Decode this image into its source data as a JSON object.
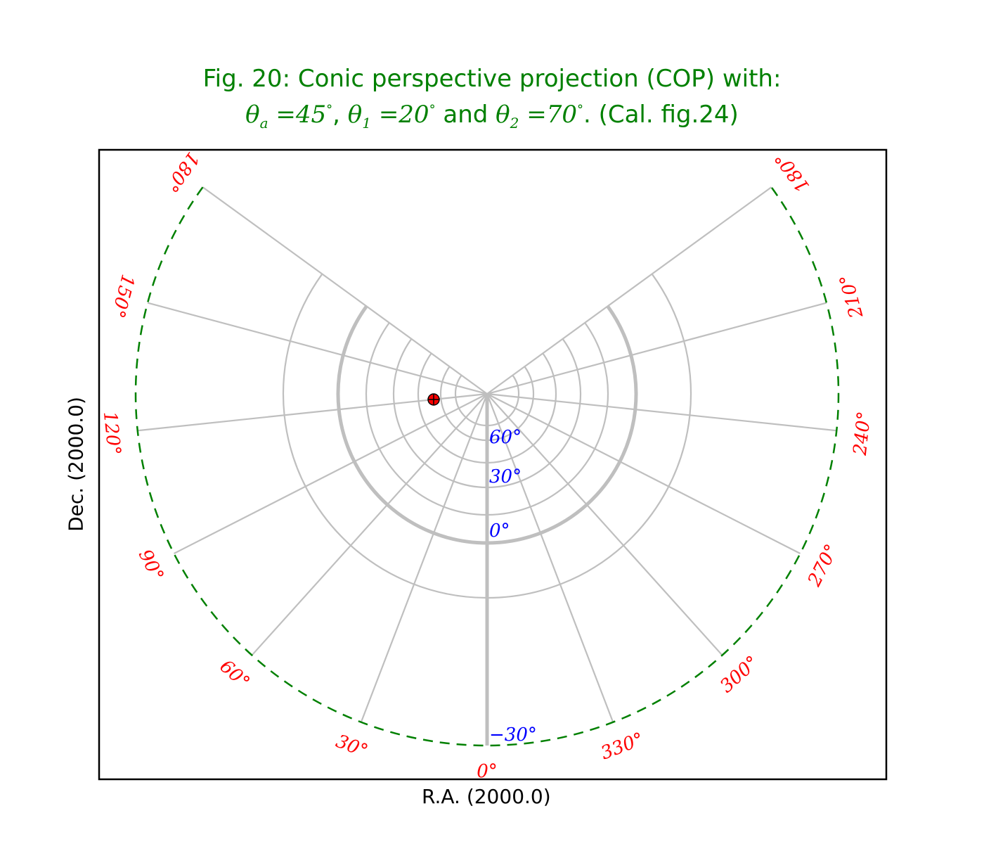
{
  "title": {
    "line1": "Fig. 20: Conic perspective projection (COP) with:",
    "theta_a_sym": "θ",
    "theta_a_sub": "a",
    "theta_a_val": "=45",
    "theta_1_sym": "θ",
    "theta_1_sub": "1",
    "theta_1_val": "=20",
    "and": "and",
    "theta_2_sym": "θ",
    "theta_2_sub": "2",
    "theta_2_val": "=70",
    "degree": "°",
    "suffix": ". (Cal. fig.24)",
    "comma": ","
  },
  "axes": {
    "xlabel": "R.A. (2000.0)",
    "ylabel": "Dec. (2000.0)"
  },
  "colors": {
    "title": "#008000",
    "grid": "#bfbfbf",
    "ra_labels": "#ff0000",
    "dec_labels": "#0000ff",
    "border": "#008000",
    "marker": "#ff0000"
  },
  "graticule": {
    "ra_labels": [
      "0°",
      "30°",
      "60°",
      "90°",
      "120°",
      "150°",
      "180°",
      "180°",
      "210°",
      "240°",
      "270°",
      "300°",
      "330°"
    ],
    "dec_labels": [
      "60°",
      "30°",
      "0°",
      "−30°"
    ]
  }
}
